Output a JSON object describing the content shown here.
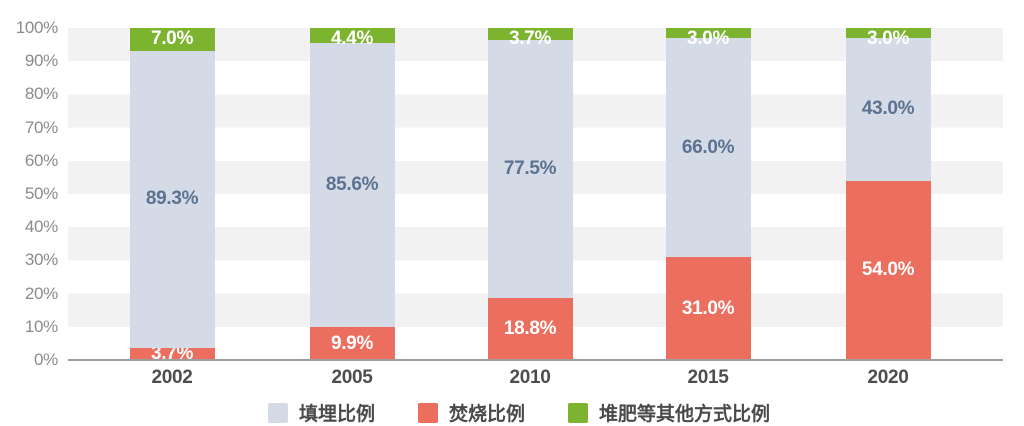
{
  "chart_data": {
    "type": "bar",
    "stacked": true,
    "title": "",
    "xlabel": "",
    "ylabel": "",
    "categories": [
      "2002",
      "2005",
      "2010",
      "2015",
      "2020"
    ],
    "series": [
      {
        "name": "填埋比例",
        "values": [
          89.3,
          85.6,
          77.5,
          66.0,
          43.0
        ],
        "color": "#d5dbe6",
        "label_color": "#5b7290"
      },
      {
        "name": "焚烧比例",
        "values": [
          3.7,
          9.9,
          18.8,
          31.0,
          54.0
        ],
        "color": "#ec6e5f",
        "label_color": "#ffffff"
      },
      {
        "name": "堆肥等其他方式比例",
        "values": [
          7.0,
          4.4,
          3.7,
          3.0,
          3.0
        ],
        "color": "#7cb32f",
        "label_color": "#ffffff"
      }
    ],
    "stack_order_bottom_to_top": [
      1,
      0,
      2
    ],
    "data_label_format": "one decimal + %",
    "ylim": [
      0,
      100
    ],
    "y_ticks": [
      "0%",
      "10%",
      "20%",
      "30%",
      "40%",
      "50%",
      "60%",
      "70%",
      "80%",
      "90%",
      "100%"
    ],
    "grid": "alternating horizontal 10% bands",
    "legend_position": "bottom"
  },
  "colors": {
    "background": "#ffffff",
    "band_gray": "#f2f2f2",
    "axis_line": "#9d9d9d",
    "y_tick_text": "#8b8b8b",
    "x_tick_text": "#4d4d4d",
    "legend_text": "#4a4a4a"
  }
}
